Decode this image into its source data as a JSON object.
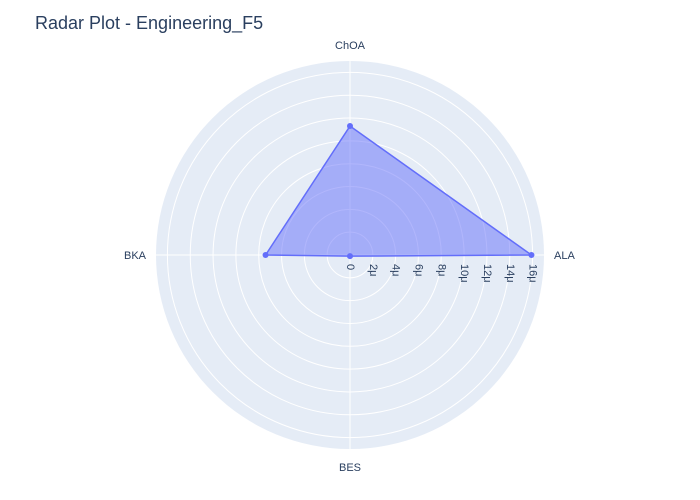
{
  "chart_data": {
    "type": "radar",
    "title": "Radar Plot - Engineering_F5",
    "categories": [
      "ALA",
      "ChOA",
      "BKA",
      "BES"
    ],
    "series": [
      {
        "values": [
          1.59e-05,
          1.13e-05,
          7.4e-06,
          1e-07
        ]
      }
    ],
    "radial_range": [
      0,
      1.7e-05
    ],
    "radial_ticks": [
      0,
      2e-06,
      4e-06,
      6e-06,
      8e-06,
      1e-05,
      1.2e-05,
      1.4e-05,
      1.6e-05
    ],
    "radial_tick_labels": [
      "0",
      "2μ",
      "4μ",
      "6μ",
      "8μ",
      "10μ",
      "12μ",
      "14μ",
      "16μ"
    ],
    "grid": true,
    "colors": {
      "background": "#e5ecf6",
      "grid": "#ffffff",
      "series_line": "#636efa",
      "series_fill": "rgba(99,110,250,0.5)",
      "text": "#2a3f5f"
    }
  }
}
